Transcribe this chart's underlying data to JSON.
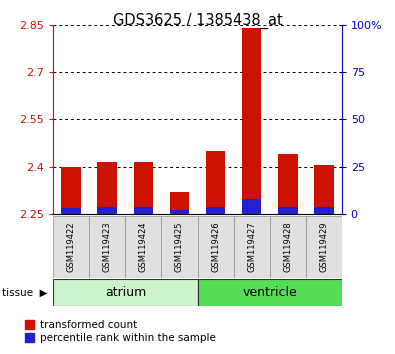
{
  "title": "GDS3625 / 1385438_at",
  "samples": [
    "GSM119422",
    "GSM119423",
    "GSM119424",
    "GSM119425",
    "GSM119426",
    "GSM119427",
    "GSM119428",
    "GSM119429"
  ],
  "red_values": [
    2.4,
    2.415,
    2.415,
    2.32,
    2.45,
    2.84,
    2.44,
    2.405
  ],
  "blue_pct": [
    3,
    4,
    4,
    2,
    4,
    8,
    4,
    4
  ],
  "baseline": 2.25,
  "ylim_left": [
    2.25,
    2.85
  ],
  "yticks_left": [
    2.25,
    2.4,
    2.55,
    2.7,
    2.85
  ],
  "ytick_labels_left": [
    "2.25",
    "2.4",
    "2.55",
    "2.7",
    "2.85"
  ],
  "ylim_right": [
    0,
    100
  ],
  "yticks_right": [
    0,
    25,
    50,
    75,
    100
  ],
  "ytick_labels_right": [
    "0",
    "25",
    "50",
    "75",
    "100%"
  ],
  "groups": [
    {
      "name": "atrium",
      "indices": [
        0,
        1,
        2,
        3
      ],
      "color_light": "#ccf5cc",
      "color_dark": "#55dd55"
    },
    {
      "name": "ventricle",
      "indices": [
        4,
        5,
        6,
        7
      ],
      "color_light": "#55dd55",
      "color_dark": "#55dd55"
    }
  ],
  "red_color": "#cc1100",
  "blue_color": "#2222cc",
  "legend_items": [
    "transformed count",
    "percentile rank within the sample"
  ],
  "left_tick_color": "#cc1100",
  "right_tick_color": "#0000cc",
  "bg_gray": "#e0e0e0",
  "bg_white": "#ffffff",
  "bar_width": 0.55
}
